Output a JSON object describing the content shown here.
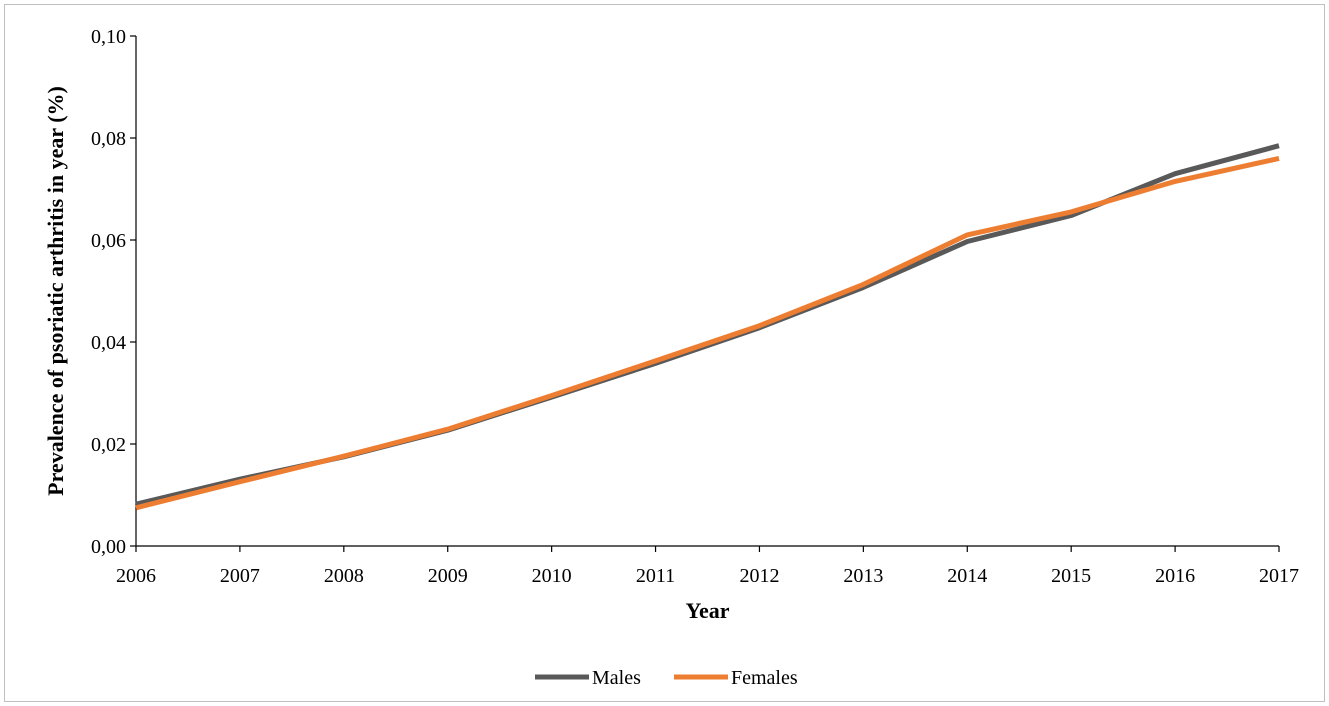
{
  "chart_data": {
    "type": "line",
    "title": "",
    "xlabel": "Year",
    "ylabel": "Prevalence of psoriatic arthritis in year (%)",
    "x": [
      "2006",
      "2007",
      "2008",
      "2009",
      "2010",
      "2011",
      "2012",
      "2013",
      "2014",
      "2015",
      "2016",
      "2017"
    ],
    "ylim": [
      0,
      0.1
    ],
    "yticks": [
      "0,00",
      "0,02",
      "0,04",
      "0,06",
      "0,08",
      "0,10"
    ],
    "grid": false,
    "legend_position": "bottom",
    "series": [
      {
        "name": "Males",
        "color": "#595959",
        "values": [
          0.0082,
          0.0131,
          0.0175,
          0.0227,
          0.0292,
          0.0358,
          0.0428,
          0.0507,
          0.0597,
          0.0648,
          0.073,
          0.0785
        ]
      },
      {
        "name": "Females",
        "color": "#ed7d31",
        "values": [
          0.0075,
          0.0126,
          0.0176,
          0.0229,
          0.0295,
          0.0363,
          0.0432,
          0.0513,
          0.061,
          0.0655,
          0.0715,
          0.076
        ]
      }
    ]
  }
}
